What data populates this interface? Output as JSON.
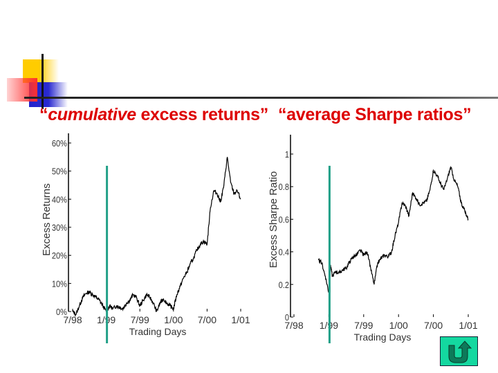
{
  "slide": {
    "title_parts": [
      {
        "text": "“",
        "italic": false
      },
      {
        "text": "cumulative",
        "italic": true
      },
      {
        "text": " excess returns”",
        "italic": false
      },
      {
        "text": "“average Sharpe ratios”",
        "italic": false
      }
    ],
    "title_left_quote": "“",
    "title_left_italic": "cumulative",
    "title_left_rest": " excess returns”",
    "title_right": "“average Sharpe ratios”",
    "colors": {
      "title": "#dd0000",
      "marker_line": "#22a088",
      "nav_button": "#14d8a0",
      "nav_arrow": "#0d7a5a"
    },
    "nav_button": {
      "icon": "u-turn-return-arrow-icon"
    }
  },
  "chart_data": [
    {
      "type": "line",
      "title": "cumulative excess returns",
      "xlabel": "Trading Days",
      "ylabel": "Excess Returns",
      "x_ticks": [
        "7/98",
        "1/99",
        "7/99",
        "1/00",
        "7/00",
        "1/01"
      ],
      "y_ticks": [
        "0%",
        "10%",
        "20%",
        "30%",
        "40%",
        "50%",
        "60%"
      ],
      "ylim": [
        0,
        0.6
      ],
      "grid": false,
      "marker_vertical_line_at": "1/99",
      "x": [
        0,
        0.1,
        0.2,
        0.3,
        0.4,
        0.5,
        0.6,
        0.7,
        0.8,
        0.9,
        1.0,
        1.1,
        1.2,
        1.3,
        1.4,
        1.5,
        1.6,
        1.7,
        1.8,
        1.9,
        2.0,
        2.1,
        2.2,
        2.3,
        2.4,
        2.5,
        2.6,
        2.7,
        2.8,
        2.9,
        3.0,
        3.1,
        3.2,
        3.3,
        3.4,
        3.5,
        3.6,
        3.7,
        3.8,
        3.9,
        4.0,
        4.1,
        4.2,
        4.3,
        4.4,
        4.5,
        4.6,
        4.7,
        4.8,
        4.9,
        5.0
      ],
      "values": [
        0.0,
        -0.01,
        0.02,
        0.05,
        0.065,
        0.07,
        0.06,
        0.05,
        0.04,
        0.02,
        0.0,
        0.02,
        0.01,
        0.02,
        0.015,
        0.01,
        0.03,
        0.04,
        0.06,
        0.05,
        0.02,
        0.04,
        0.06,
        0.05,
        0.03,
        0.0,
        0.03,
        0.045,
        0.03,
        0.02,
        0.01,
        0.06,
        0.09,
        0.12,
        0.14,
        0.17,
        0.19,
        0.22,
        0.24,
        0.25,
        0.24,
        0.37,
        0.43,
        0.42,
        0.39,
        0.45,
        0.55,
        0.46,
        0.42,
        0.43,
        0.4
      ],
      "series_name": "Excess Returns"
    },
    {
      "type": "line",
      "title": "average Sharpe ratios",
      "xlabel": "Trading Days",
      "ylabel": "Excess Sharpe Ratio",
      "x_ticks": [
        "7/98",
        "1/99",
        "7/99",
        "1/00",
        "7/00",
        "1/01"
      ],
      "y_ticks": [
        "0",
        "0.2",
        "0.4",
        "0.6",
        "0.8",
        "1"
      ],
      "ylim": [
        0,
        1.1
      ],
      "grid": false,
      "marker_vertical_line_at": "1/99",
      "x": [
        0.7,
        0.8,
        0.9,
        1.0,
        1.05,
        1.1,
        1.2,
        1.3,
        1.4,
        1.5,
        1.6,
        1.7,
        1.8,
        1.9,
        2.0,
        2.1,
        2.2,
        2.3,
        2.4,
        2.5,
        2.6,
        2.7,
        2.8,
        2.9,
        3.0,
        3.1,
        3.2,
        3.3,
        3.4,
        3.5,
        3.6,
        3.7,
        3.8,
        3.9,
        4.0,
        4.1,
        4.2,
        4.3,
        4.4,
        4.5,
        4.6,
        4.7,
        4.8,
        4.9,
        5.0
      ],
      "values": [
        0.35,
        0.33,
        0.25,
        0.15,
        0.32,
        0.25,
        0.28,
        0.27,
        0.29,
        0.3,
        0.34,
        0.37,
        0.38,
        0.41,
        0.38,
        0.4,
        0.3,
        0.2,
        0.33,
        0.36,
        0.38,
        0.37,
        0.4,
        0.5,
        0.58,
        0.7,
        0.68,
        0.62,
        0.76,
        0.73,
        0.69,
        0.7,
        0.71,
        0.78,
        0.9,
        0.87,
        0.82,
        0.78,
        0.85,
        0.92,
        0.84,
        0.8,
        0.7,
        0.65,
        0.6
      ],
      "series_name": "Excess Sharpe Ratio"
    }
  ]
}
